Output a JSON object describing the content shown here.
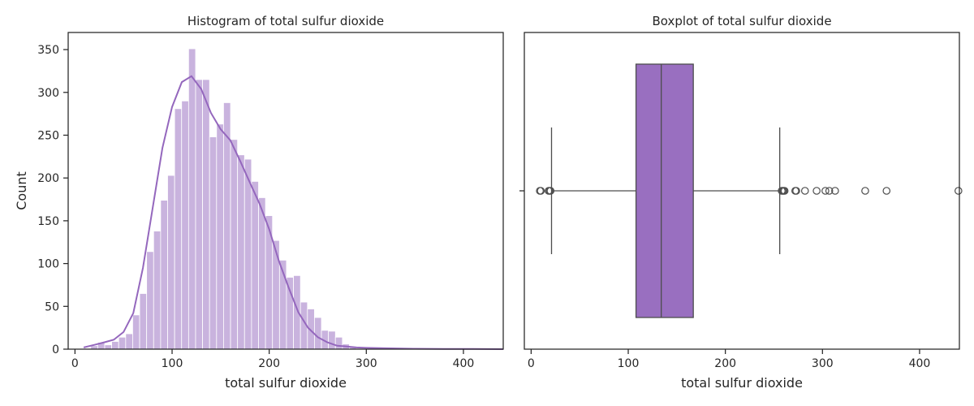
{
  "chart_data": [
    {
      "type": "histogram",
      "title": "Histogram of total sulfur dioxide",
      "xlabel": "total sulfur dioxide",
      "ylabel": "Count",
      "xlim": [
        -7,
        441
      ],
      "ylim": [
        0,
        370
      ],
      "xticks": [
        0,
        100,
        200,
        300,
        400
      ],
      "yticks": [
        0,
        50,
        100,
        150,
        200,
        250,
        300,
        350
      ],
      "bin_start": 9.0,
      "bin_width": 7.2,
      "counts": [
        1,
        4,
        8,
        5,
        9,
        14,
        18,
        40,
        65,
        114,
        138,
        174,
        203,
        281,
        290,
        351,
        315,
        315,
        248,
        263,
        288,
        245,
        227,
        222,
        196,
        177,
        156,
        127,
        104,
        84,
        86,
        55,
        47,
        37,
        22,
        21,
        14,
        6,
        2,
        1,
        1,
        0,
        0,
        1,
        1,
        0,
        0,
        0,
        0,
        0,
        0,
        0,
        0,
        0,
        0,
        0,
        0,
        0,
        1
      ],
      "color": "#9467bd",
      "kde": {
        "x": [
          9,
          20,
          30,
          40,
          50,
          60,
          70,
          80,
          90,
          100,
          110,
          120,
          130,
          140,
          150,
          160,
          170,
          180,
          190,
          200,
          210,
          220,
          230,
          240,
          250,
          260,
          270,
          280,
          290,
          300,
          320,
          350,
          380,
          410,
          441
        ],
        "y": [
          2,
          5,
          8,
          11,
          20,
          42,
          95,
          165,
          235,
          283,
          312,
          319,
          304,
          276,
          257,
          244,
          220,
          195,
          170,
          140,
          103,
          72,
          43,
          25,
          14,
          8,
          4,
          3,
          2,
          1.5,
          1,
          0.5,
          0.3,
          0.2,
          0
        ]
      }
    },
    {
      "type": "boxplot",
      "title": "Boxplot of total sulfur dioxide",
      "xlabel": "total sulfur dioxide",
      "xlim": [
        -7,
        441
      ],
      "xticks": [
        0,
        100,
        200,
        300,
        400
      ],
      "whisker_low": 21,
      "q1": 108,
      "median": 134,
      "q3": 167,
      "whisker_high": 256,
      "outliers": [
        9,
        10,
        18,
        19,
        20,
        258,
        259,
        260,
        261,
        272,
        273,
        282,
        294,
        303,
        307,
        313,
        344,
        366,
        440
      ],
      "color": "#9467bd"
    }
  ]
}
